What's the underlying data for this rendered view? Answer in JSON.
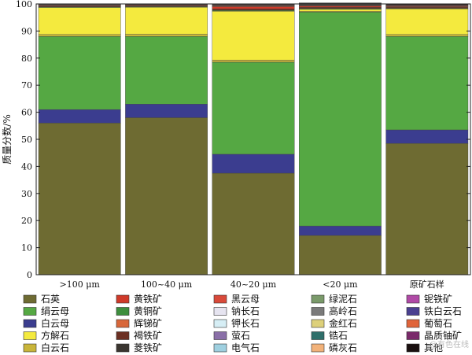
{
  "chart_data": {
    "type": "bar",
    "stacked": true,
    "ylabel": "质量分数/%",
    "ylim": [
      0,
      100
    ],
    "yticks": [
      0,
      10,
      20,
      30,
      40,
      50,
      60,
      70,
      80,
      90,
      100
    ],
    "categories": [
      ">100 μm",
      "100~40 μm",
      "40~20 μm",
      "<20 μm",
      "原矿石样"
    ],
    "legend_position": "bottom",
    "series": [
      {
        "name": "石英",
        "color": "#6e6b32",
        "values": [
          56.0,
          58.0,
          37.5,
          14.5,
          48.5
        ]
      },
      {
        "name": "白云母",
        "color": "#3b3d8f",
        "values": [
          5.0,
          5.0,
          7.0,
          3.5,
          5.0
        ]
      },
      {
        "name": "绢云母",
        "color": "#55a843",
        "values": [
          27.0,
          25.0,
          34.0,
          79.0,
          34.5
        ]
      },
      {
        "name": "白云石",
        "color": "#c9b53a",
        "values": [
          0.7,
          0.8,
          0.8,
          0.3,
          0.7
        ]
      },
      {
        "name": "方解石",
        "color": "#f4ea3e",
        "values": [
          10.0,
          10.0,
          18.0,
          0.7,
          9.5
        ]
      },
      {
        "name": "黄铜矿",
        "color": "#3e8e3e",
        "values": [
          0.2,
          0.2,
          0.3,
          0.3,
          0.2
        ]
      },
      {
        "name": "褐铁矿",
        "color": "#6b2f22",
        "values": [
          0.3,
          0.3,
          0.6,
          0.5,
          0.4
        ]
      },
      {
        "name": "黄铁矿",
        "color": "#cf3a2a",
        "values": [
          0.2,
          0.2,
          0.8,
          0.4,
          0.2
        ]
      },
      {
        "name": "辉锑矿",
        "color": "#d8673a",
        "values": [
          0.2,
          0.2,
          0.2,
          0.2,
          0.2
        ]
      },
      {
        "name": "菱铁矿",
        "color": "#3a3530",
        "values": [
          0.1,
          0.1,
          0.2,
          0.2,
          0.2
        ]
      },
      {
        "name": "黑云母",
        "color": "#d94a3a",
        "values": [
          0.1,
          0.1,
          0.2,
          0.2,
          0.2
        ]
      },
      {
        "name": "钠长石",
        "color": "#e6e4f0",
        "values": [
          0.1,
          0.1,
          0.1,
          0.4,
          0.1
        ]
      },
      {
        "name": "钾长石",
        "color": "#d6eef5",
        "values": [
          0.0,
          0.0,
          0.0,
          0.0,
          0.0
        ]
      },
      {
        "name": "萤石",
        "color": "#8a6fa8",
        "values": [
          0.0,
          0.0,
          0.0,
          0.0,
          0.0
        ]
      },
      {
        "name": "电气石",
        "color": "#9fd0e0",
        "values": [
          0.0,
          0.0,
          0.0,
          0.0,
          0.0
        ]
      },
      {
        "name": "绿泥石",
        "color": "#7a9a6a",
        "values": [
          0.0,
          0.0,
          0.1,
          0.0,
          0.0
        ]
      },
      {
        "name": "高岭石",
        "color": "#7a7a7a",
        "values": [
          0.0,
          0.0,
          0.0,
          0.0,
          0.0
        ]
      },
      {
        "name": "金红石",
        "color": "#ddd07a",
        "values": [
          0.0,
          0.0,
          0.0,
          0.0,
          0.0
        ]
      },
      {
        "name": "锆石",
        "color": "#2f6f6a",
        "values": [
          0.0,
          0.0,
          0.0,
          0.0,
          0.0
        ]
      },
      {
        "name": "磷灰石",
        "color": "#f2b27a",
        "values": [
          0.0,
          0.0,
          0.0,
          0.0,
          0.0
        ]
      },
      {
        "name": "铌铁矿",
        "color": "#b04aa6",
        "values": [
          0.0,
          0.0,
          0.0,
          0.0,
          0.0
        ]
      },
      {
        "name": "铁白云石",
        "color": "#4a4090",
        "values": [
          0.0,
          0.0,
          0.0,
          0.0,
          0.0
        ]
      },
      {
        "name": "葡萄石",
        "color": "#e0643a",
        "values": [
          0.0,
          0.0,
          0.0,
          0.0,
          0.0
        ]
      },
      {
        "name": "晶质铀矿",
        "color": "#7a2a6a",
        "values": [
          0.0,
          0.0,
          0.0,
          0.0,
          0.0
        ]
      },
      {
        "name": "其他",
        "color": "#1a1010",
        "values": [
          0.1,
          0.0,
          0.2,
          0.2,
          0.2
        ]
      }
    ],
    "legend_order": [
      "石英",
      "黄铁矿",
      "黑云母",
      "绿泥石",
      "铌铁矿",
      "绢云母",
      "黄铜矿",
      "钠长石",
      "高岭石",
      "铁白云石",
      "白云母",
      "辉锑矿",
      "钾长石",
      "金红石",
      "葡萄石",
      "方解石",
      "褐铁矿",
      "萤石",
      "锆石",
      "晶质铀矿",
      "白云石",
      "菱铁矿",
      "电气石",
      "磷灰石",
      "其他"
    ]
  },
  "watermark": "@有色在线"
}
